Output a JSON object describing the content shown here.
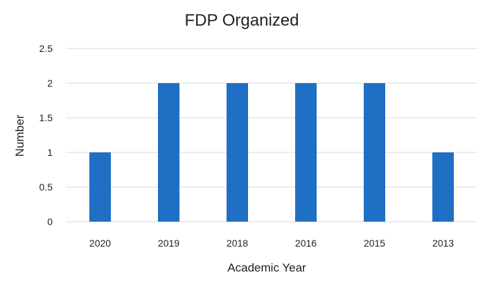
{
  "chart_data": {
    "type": "bar",
    "title": "FDP Organized",
    "xlabel": "Academic Year",
    "ylabel": "Number",
    "categories": [
      "2020",
      "2019",
      "2018",
      "2016",
      "2015",
      "2013"
    ],
    "values": [
      1,
      2,
      2,
      2,
      2,
      1
    ],
    "ylim": [
      0,
      2.5
    ],
    "yticks": [
      "0",
      "0.5",
      "1",
      "1.5",
      "2",
      "2.5"
    ],
    "grid": true,
    "legend": "none",
    "colors": {
      "bar": "#1f6fc4"
    }
  }
}
